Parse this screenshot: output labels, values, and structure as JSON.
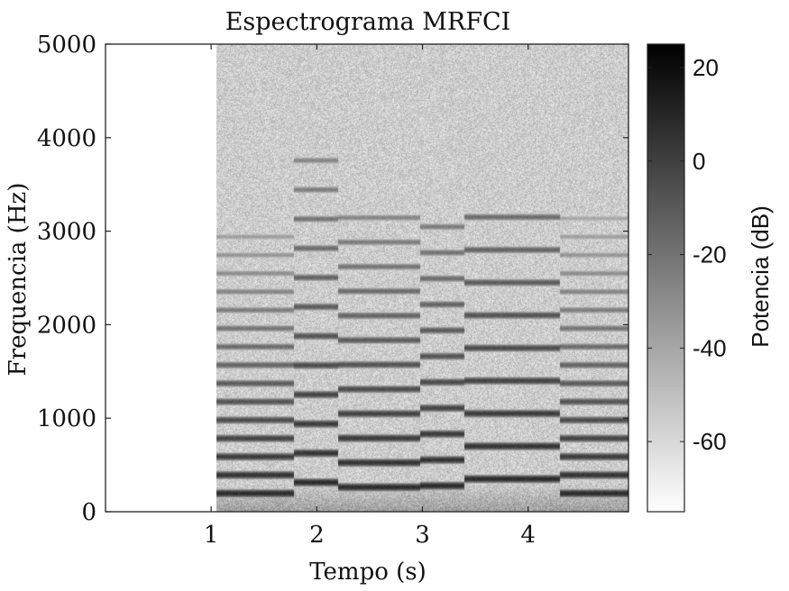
{
  "chart_data": {
    "type": "heatmap",
    "title": "Espectrograma MRFCI",
    "xlabel": "Tempo (s)",
    "ylabel": "Frequencia (Hz)",
    "xlim": [
      0,
      4.95
    ],
    "ylim": [
      0,
      5000
    ],
    "x_ticks": [
      {
        "value": 1,
        "label": "1"
      },
      {
        "value": 2,
        "label": "2"
      },
      {
        "value": 3,
        "label": "3"
      },
      {
        "value": 4,
        "label": "4"
      }
    ],
    "y_ticks": [
      {
        "value": 0,
        "label": "0"
      },
      {
        "value": 1000,
        "label": "1000"
      },
      {
        "value": 2000,
        "label": "2000"
      },
      {
        "value": 3000,
        "label": "3000"
      },
      {
        "value": 4000,
        "label": "4000"
      },
      {
        "value": 5000,
        "label": "5000"
      }
    ],
    "colormap": "gray-reversed",
    "colorbar": {
      "label": "Potencia (dB)",
      "range": [
        -75,
        25
      ],
      "ticks": [
        {
          "value": 20,
          "label": "20"
        },
        {
          "value": 0,
          "label": "0"
        },
        {
          "value": -20,
          "label": "-20"
        },
        {
          "value": -40,
          "label": "-40"
        },
        {
          "value": -60,
          "label": "-60"
        }
      ]
    },
    "signal_start": 1.05,
    "noise_level_db": -55,
    "segments": [
      {
        "start": 1.05,
        "end": 1.78,
        "f0": 196,
        "harmonics": 15
      },
      {
        "start": 1.78,
        "end": 2.2,
        "f0": 313,
        "harmonics": 12
      },
      {
        "start": 2.2,
        "end": 2.98,
        "f0": 262,
        "harmonics": 12
      },
      {
        "start": 2.98,
        "end": 3.4,
        "f0": 277,
        "harmonics": 11
      },
      {
        "start": 3.4,
        "end": 4.3,
        "f0": 350,
        "harmonics": 9
      },
      {
        "start": 4.3,
        "end": 4.95,
        "f0": 196,
        "harmonics": 16
      }
    ]
  }
}
